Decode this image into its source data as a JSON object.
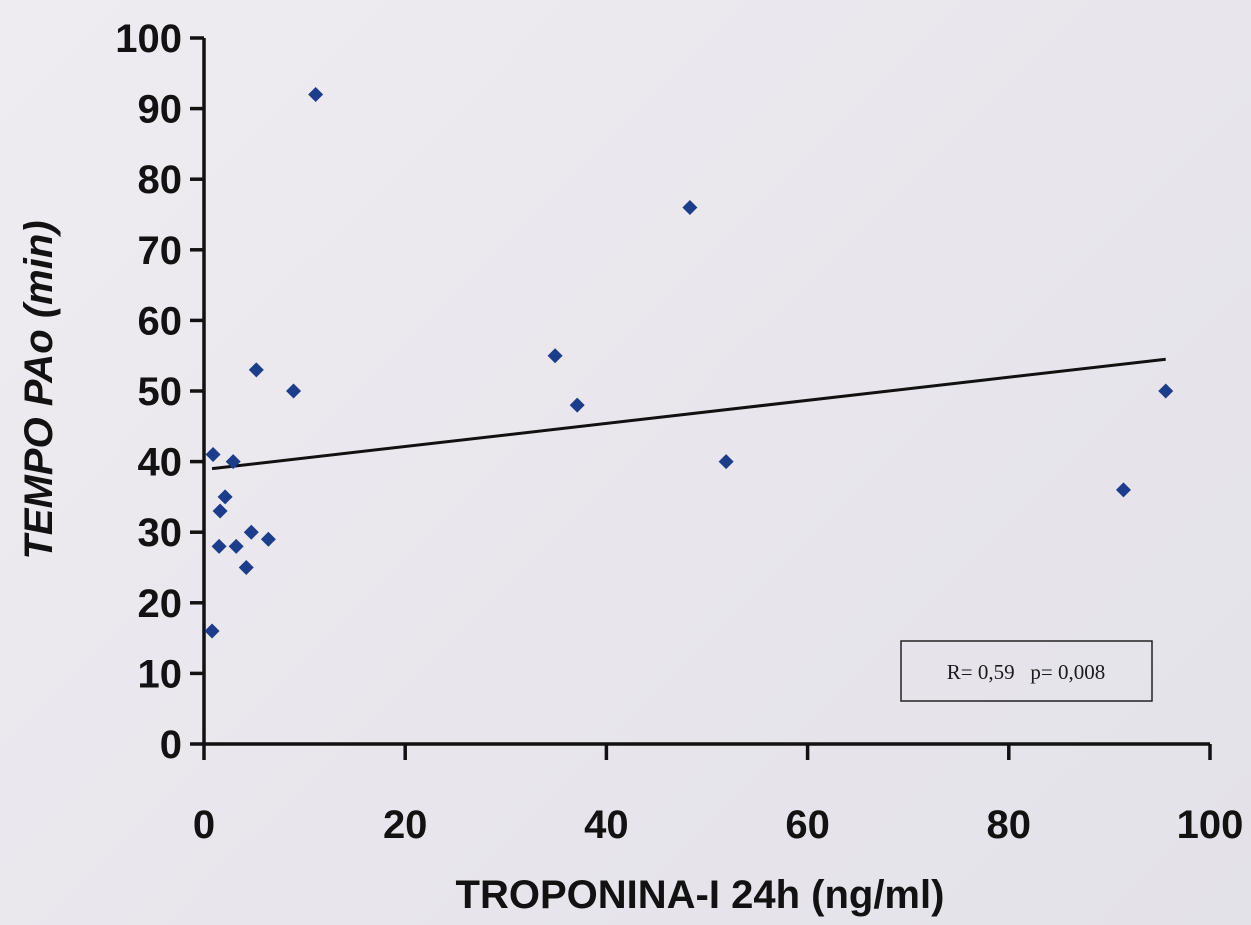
{
  "chart_data": {
    "type": "scatter",
    "xlabel": "TROPONINA-I  24h (ng/ml)",
    "ylabel": "TEMPO  PAo (min)",
    "xlim": [
      0,
      100
    ],
    "ylim": [
      0,
      100
    ],
    "x_ticks": [
      "0",
      "20",
      "40",
      "60",
      "80",
      "100"
    ],
    "y_ticks": [
      "0",
      "10",
      "20",
      "30",
      "40",
      "50",
      "60",
      "70",
      "80",
      "90",
      "100"
    ],
    "series": [
      {
        "marker": "diamond",
        "color": "#1c3c8c",
        "points": [
          {
            "x": 0.8,
            "y": 16
          },
          {
            "x": 0.9,
            "y": 41
          },
          {
            "x": 1.5,
            "y": 28
          },
          {
            "x": 1.6,
            "y": 33
          },
          {
            "x": 2.1,
            "y": 35
          },
          {
            "x": 2.9,
            "y": 40
          },
          {
            "x": 3.2,
            "y": 28
          },
          {
            "x": 4.2,
            "y": 25
          },
          {
            "x": 4.7,
            "y": 30
          },
          {
            "x": 5.2,
            "y": 53
          },
          {
            "x": 6.4,
            "y": 29
          },
          {
            "x": 8.9,
            "y": 50
          },
          {
            "x": 11.1,
            "y": 92
          },
          {
            "x": 34.9,
            "y": 55
          },
          {
            "x": 37.1,
            "y": 48
          },
          {
            "x": 48.3,
            "y": 76
          },
          {
            "x": 51.9,
            "y": 40
          },
          {
            "x": 91.4,
            "y": 36
          },
          {
            "x": 95.6,
            "y": 50
          }
        ]
      }
    ],
    "trendline": {
      "x": [
        0.8,
        95.6
      ],
      "y": [
        39,
        54.5
      ],
      "color": "#111111"
    },
    "annotation": "R= 0,59   p= 0,008",
    "grid": false,
    "legend": "none"
  }
}
